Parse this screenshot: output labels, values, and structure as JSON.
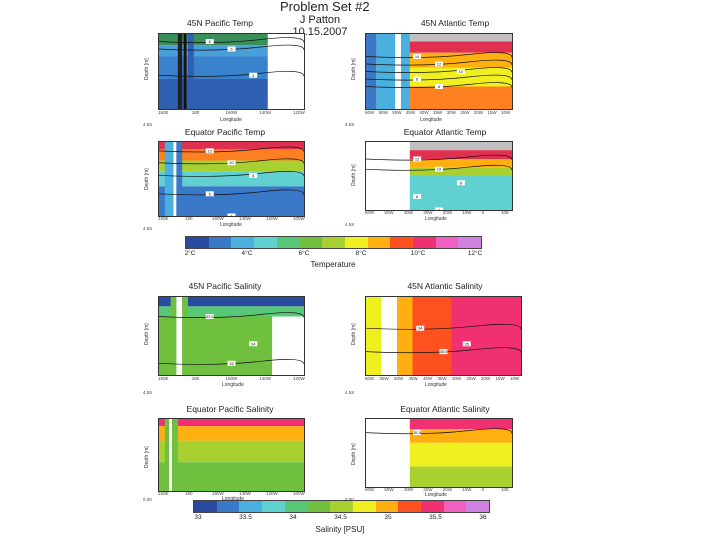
{
  "header": {
    "title": "Problem Set #2",
    "author": "J Patton",
    "date": "10.15.2007"
  },
  "chart_data": [
    {
      "type": "heatmap",
      "id": "pac45t",
      "title": "45N Pacific Temp",
      "xlabel": "Longitude",
      "ylabel": "Depth [m]",
      "xticks": [
        "160E",
        "180",
        "160W",
        "140W",
        "120W"
      ],
      "contour_labels": [
        "8",
        "6",
        "4"
      ],
      "corner": "4.5S"
    },
    {
      "type": "heatmap",
      "id": "atl45t",
      "title": "45N Atlantic Temp",
      "xlabel": "Longitude",
      "ylabel": "Depth [m]",
      "xticks": [
        "60W",
        "55W",
        "50W",
        "45W",
        "40W",
        "35W",
        "30W",
        "25W",
        "20W",
        "15W",
        "10W"
      ],
      "contour_labels": [
        "14",
        "12",
        "10",
        "8",
        "6",
        "4"
      ],
      "corner": "4.5S"
    },
    {
      "type": "heatmap",
      "id": "pacEqt",
      "title": "Equator Pacific Temp",
      "xlabel": "Longitude",
      "ylabel": "Depth [m]",
      "xticks": [
        "160E",
        "180",
        "160W",
        "140W",
        "120W",
        "100W"
      ],
      "contour_labels": [
        "12",
        "10",
        "8",
        "6",
        "4",
        "2"
      ],
      "corner": "4.5S"
    },
    {
      "type": "heatmap",
      "id": "atlEqt",
      "title": "Equator Atlantic Temp",
      "xlabel": "Longitude",
      "ylabel": "Depth [m]",
      "xticks": [
        "60W",
        "50W",
        "40W",
        "30W",
        "20W",
        "10W",
        "0",
        "10E"
      ],
      "contour_labels": [
        "12",
        "10",
        "8",
        "6",
        "4"
      ],
      "corner": "4.5S"
    },
    {
      "type": "heatmap",
      "id": "pac45s",
      "title": "45N Pacific Salinity",
      "xlabel": "Longitude",
      "ylabel": "Depth [m]",
      "xticks": [
        "160E",
        "180",
        "160W",
        "140W",
        "120W"
      ],
      "contour_labels": [
        "33.5",
        "34",
        "34"
      ],
      "corner": "4.5S"
    },
    {
      "type": "heatmap",
      "id": "atl45s",
      "title": "45N Atlantic Salinity",
      "xlabel": "Longitude",
      "ylabel": "Depth [m]",
      "xticks": [
        "60W",
        "55W",
        "50W",
        "45W",
        "40W",
        "35W",
        "30W",
        "25W",
        "20W",
        "15W",
        "10W"
      ],
      "contour_labels": [
        "34",
        "35.5",
        "35"
      ],
      "corner": "4.5S"
    },
    {
      "type": "heatmap",
      "id": "pacEqs",
      "title": "Equator Pacific Salinity",
      "xlabel": "Longitude",
      "ylabel": "Depth [m]",
      "xticks": [
        "160E",
        "180",
        "160W",
        "140W",
        "120W",
        "100W"
      ],
      "contour_labels": [],
      "corner": "0.00"
    },
    {
      "type": "heatmap",
      "id": "atlEqs",
      "title": "Equator Atlantic Salinity",
      "xlabel": "Longitude",
      "ylabel": "Depth [m]",
      "xticks": [
        "60W",
        "50W",
        "40W",
        "30W",
        "20W",
        "10W",
        "0",
        "10E"
      ],
      "contour_labels": [
        "35.5"
      ],
      "corner": "0.00"
    }
  ],
  "temp_colorbar": {
    "title": "Temperature",
    "ticks": [
      "2°C",
      "4°C",
      "6°C",
      "8°C",
      "10°C",
      "12°C"
    ],
    "colors": [
      "#2a4aa0",
      "#3a78c8",
      "#4ab0e0",
      "#60d0d0",
      "#58c878",
      "#70c040",
      "#a8d030",
      "#f0f020",
      "#ffb010",
      "#ff5020",
      "#f03070",
      "#f060c0",
      "#d080e0"
    ]
  },
  "sal_colorbar": {
    "title": "Salinity [PSU]",
    "ticks": [
      "33",
      "33.5",
      "34",
      "34.5",
      "35",
      "35.5",
      "36"
    ],
    "colors": [
      "#2a4aa0",
      "#3a78c8",
      "#4ab0e0",
      "#60d0d0",
      "#58c878",
      "#70c040",
      "#a8d030",
      "#f0f020",
      "#ffb010",
      "#ff5020",
      "#f03070",
      "#f060c0",
      "#d080e0"
    ]
  }
}
